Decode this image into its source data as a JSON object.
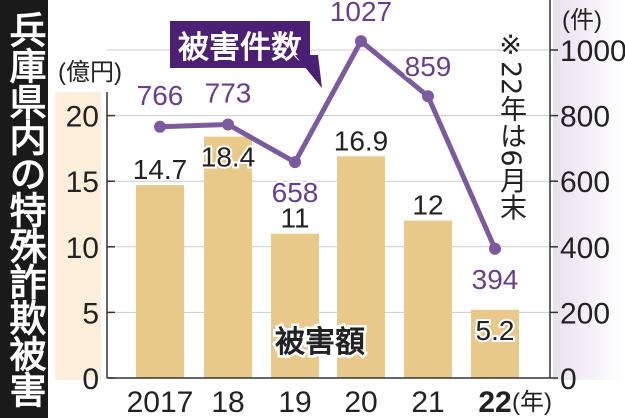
{
  "title": "兵庫県内の特殊詐欺被害",
  "note": "※22年は6月末",
  "colors": {
    "bar": "#e8c98a",
    "line": "#7d5aa0",
    "label_box": "#4b1f74",
    "title_bg": "#1a1a1a"
  },
  "chart_data": {
    "type": "bar+line",
    "categories": [
      "2017",
      "18",
      "19",
      "20",
      "21",
      "22"
    ],
    "x_unit": "(年)",
    "series": [
      {
        "name": "被害額",
        "type": "bar",
        "axis": "left",
        "values": [
          14.7,
          18.4,
          11,
          16.9,
          12,
          5.2
        ],
        "labels": [
          "14.7",
          "18.4",
          "11",
          "16.9",
          "12",
          "5.2"
        ]
      },
      {
        "name": "被害件数",
        "type": "line",
        "axis": "right",
        "values": [
          766,
          773,
          658,
          1027,
          859,
          394
        ],
        "labels": [
          "766",
          "773",
          "658",
          "1027",
          "859",
          "394"
        ]
      }
    ],
    "left_axis": {
      "unit": "(億円)",
      "ticks": [
        "0",
        "5",
        "10",
        "15",
        "20"
      ],
      "range": [
        0,
        25
      ]
    },
    "right_axis": {
      "unit": "(件)",
      "ticks": [
        "0",
        "200",
        "400",
        "600",
        "800",
        "1000"
      ],
      "range": [
        0,
        1000
      ]
    },
    "grid": true
  }
}
